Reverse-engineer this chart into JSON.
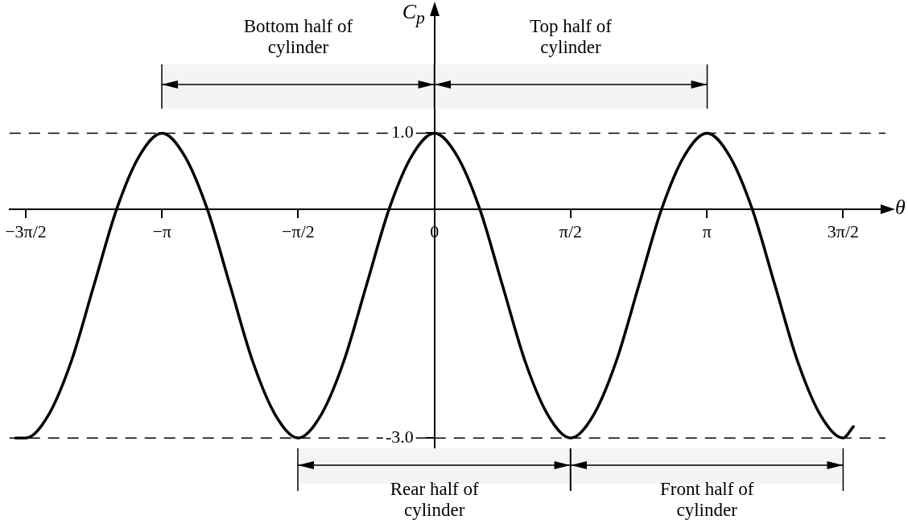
{
  "chart_data": {
    "type": "line",
    "xlabel": "θ",
    "ylabel": "C$_{p}$",
    "x": [
      -4.83,
      -4.712,
      -4.451,
      -4.189,
      -3.927,
      -3.665,
      -3.403,
      -3.142,
      -2.88,
      -2.618,
      -2.356,
      -2.094,
      -1.833,
      -1.571,
      -1.309,
      -1.047,
      -0.785,
      -0.524,
      -0.262,
      0,
      0.262,
      0.524,
      0.785,
      1.047,
      1.309,
      1.571,
      1.833,
      2.094,
      2.356,
      2.618,
      2.88,
      3.142,
      3.403,
      3.665,
      3.927,
      4.189,
      4.451,
      4.712,
      4.83
    ],
    "values": [
      -3.0,
      -3.0,
      -2.7,
      -2.0,
      -1.0,
      0,
      0.7,
      1.0,
      0.7,
      0,
      -1.0,
      -2.0,
      -2.7,
      -3.0,
      -2.7,
      -2.0,
      -1.0,
      0,
      0.7,
      1.0,
      0.7,
      0,
      -1.0,
      -2.0,
      -2.7,
      -3.0,
      -2.7,
      -2.0,
      -1.0,
      0,
      0.7,
      1.0,
      0.7,
      0,
      -1.0,
      -2.0,
      -2.7,
      -3.0,
      -2.85
    ],
    "color": "#000000",
    "marker": "none",
    "line_style": "solid",
    "xlim": [
      -4.9,
      5.2
    ],
    "ylim": [
      -3.6,
      2.6
    ],
    "xticks": [
      {
        "value": -4.712,
        "label": "−3π/2"
      },
      {
        "value": -3.142,
        "label": "−π"
      },
      {
        "value": -1.571,
        "label": "−π/2"
      },
      {
        "value": 0,
        "label": "0"
      },
      {
        "value": 1.571,
        "label": "π/2"
      },
      {
        "value": 3.142,
        "label": "π"
      },
      {
        "value": 4.712,
        "label": "3π/2"
      }
    ],
    "yticks": [
      {
        "value": 1.0,
        "label": "1.0"
      },
      {
        "value": -3.0,
        "label": "-3.0"
      }
    ],
    "ref_lines": [
      {
        "axis": "y",
        "value": 1.0,
        "line_style": "dashed"
      },
      {
        "axis": "y",
        "value": -3.0,
        "line_style": "dashed"
      }
    ],
    "bands": [
      {
        "axis": "x",
        "from": -3.142,
        "to": 0,
        "label": "Bottom half of cylinder",
        "color": "#f4f4f4"
      },
      {
        "axis": "x",
        "from": 0,
        "to": 3.142,
        "label": "Top half of cylinder",
        "color": "#f4f4f4"
      },
      {
        "axis": "x",
        "from": -1.571,
        "to": 1.571,
        "label": "Rear half of cylinder",
        "color": "#f4f4f4"
      },
      {
        "axis": "x",
        "from": 1.571,
        "to": 4.712,
        "label": "Front half of cylinder",
        "color": "#f4f4f4"
      }
    ],
    "grid": false,
    "legend": false
  }
}
